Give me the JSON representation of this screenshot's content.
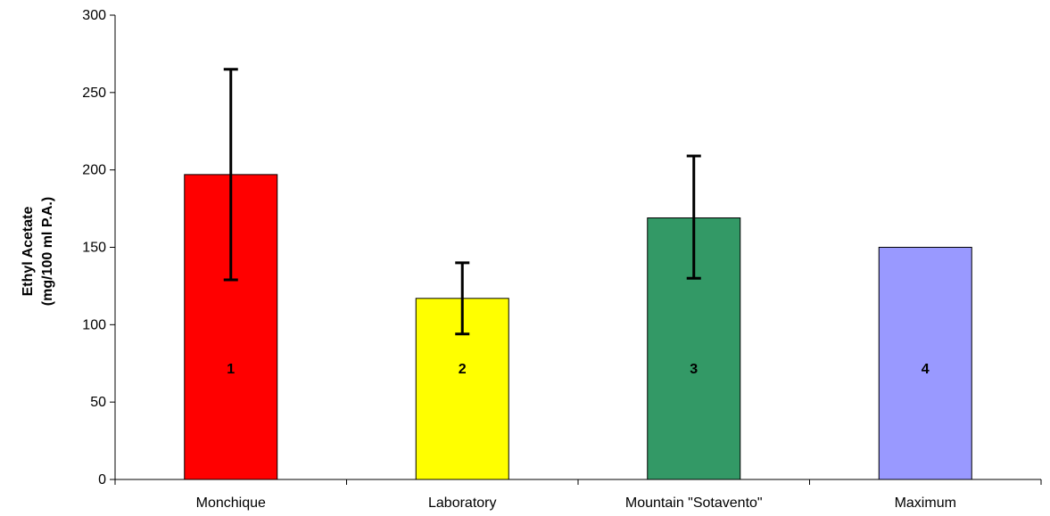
{
  "chart_data": {
    "type": "bar",
    "title": "",
    "xlabel": "",
    "ylabel": [
      "Ethyl Acetate",
      "(mg/100 ml P.A.)"
    ],
    "ylim": [
      0,
      300
    ],
    "yticks": [
      "0",
      "50",
      "100",
      "150",
      "200",
      "250",
      "300"
    ],
    "grid": false,
    "legend": "none",
    "categories": [
      "Monchique",
      "Laboratory",
      "Mountain \"Sotavento\"",
      "Maximum"
    ],
    "values": [
      197,
      117,
      169,
      150
    ],
    "error_low": [
      129,
      94,
      130,
      null
    ],
    "error_high": [
      265,
      140,
      209,
      null
    ],
    "bar_labels": [
      "1",
      "2",
      "3",
      "4"
    ],
    "colors": [
      "#ff0000",
      "#ffff00",
      "#339966",
      "#9999ff"
    ]
  }
}
